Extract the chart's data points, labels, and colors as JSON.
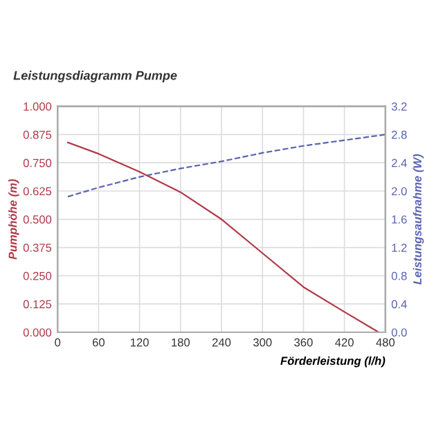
{
  "chart_data": {
    "type": "line",
    "title": "Leistungsdiagramm Pumpe",
    "xlabel": "Förderleistung (l/h)",
    "ylabel": "Pumphöhe (m)",
    "y2label": "Leistungsaufnahme (W)",
    "xlim": [
      0,
      480
    ],
    "xticks": [
      0,
      60,
      120,
      180,
      240,
      300,
      360,
      420,
      480
    ],
    "ylim": [
      0,
      1
    ],
    "yticks": [
      {
        "value": 0,
        "label": "0.000"
      },
      {
        "value": 0.125,
        "label": "0.125"
      },
      {
        "value": 0.25,
        "label": "0.250"
      },
      {
        "value": 0.375,
        "label": "0.375"
      },
      {
        "value": 0.5,
        "label": "0.500"
      },
      {
        "value": 0.625,
        "label": "0.625"
      },
      {
        "value": 0.75,
        "label": "0.750"
      },
      {
        "value": 0.875,
        "label": "0.875"
      },
      {
        "value": 1,
        "label": "1.000"
      }
    ],
    "y2lim": [
      0,
      3.2
    ],
    "y2ticks": [
      {
        "value": 0,
        "label": "0.0"
      },
      0.4,
      0.8,
      1.2,
      1.6,
      {
        "value": 2,
        "label": "2.0"
      },
      2.4,
      2.8,
      3.2
    ],
    "grid": true,
    "series": [
      {
        "color": "#b03a48",
        "line_style": "solid",
        "x": [
          15,
          60,
          120,
          180,
          240,
          300,
          360,
          420,
          470
        ],
        "values": [
          0.84,
          0.79,
          0.71,
          0.62,
          0.5,
          0.35,
          0.2,
          0.09,
          0.0
        ]
      },
      {
        "color": "#5a64b0",
        "line_style": "dashed",
        "axis": "y2",
        "x": [
          15,
          60,
          120,
          180,
          240,
          300,
          360,
          420,
          480
        ],
        "values": [
          1.92,
          2.05,
          2.2,
          2.32,
          2.42,
          2.54,
          2.64,
          2.72,
          2.8
        ]
      }
    ]
  }
}
